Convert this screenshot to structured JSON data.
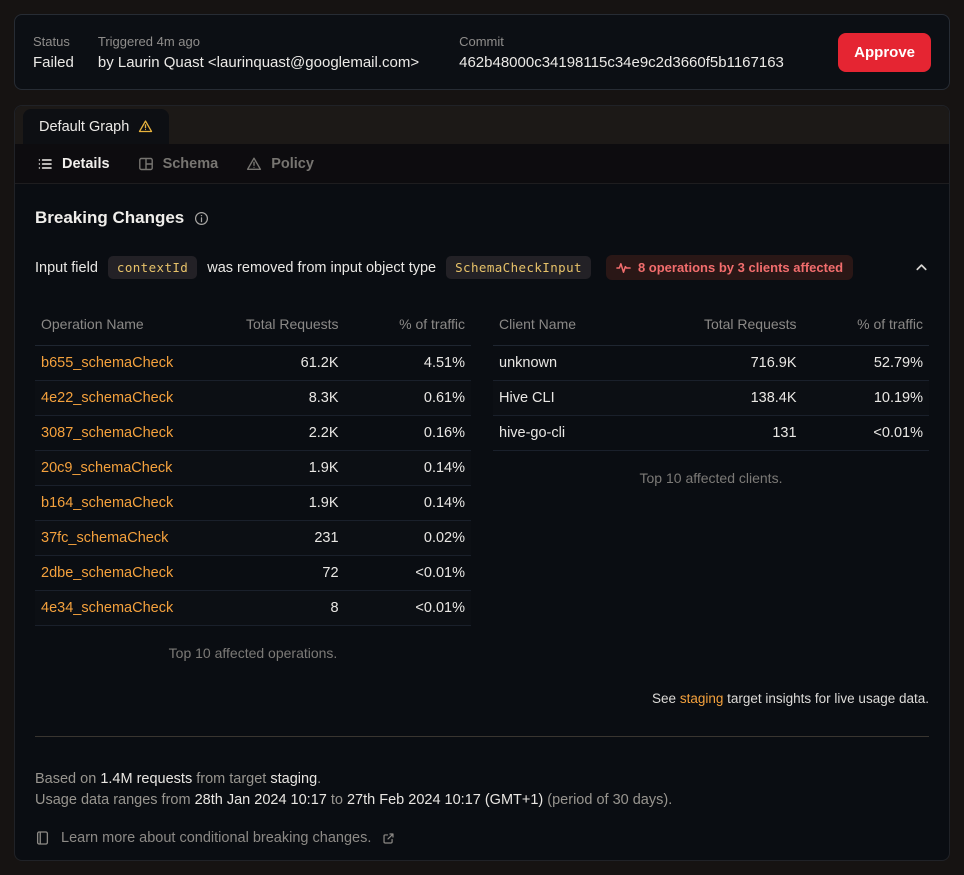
{
  "header": {
    "status_label": "Status",
    "status_value": "Failed",
    "triggered_label": "Triggered 4m ago",
    "triggered_value": "by Laurin Quast <laurinquast@googlemail.com>",
    "commit_label": "Commit",
    "commit_value": "462b48000c34198115c34e9c2d3660f5b1167163",
    "approve_label": "Approve"
  },
  "graph_tab": {
    "label": "Default Graph"
  },
  "tabs": {
    "details": "Details",
    "schema": "Schema",
    "policy": "Policy"
  },
  "breaking": {
    "title": "Breaking Changes",
    "change": {
      "prefix": "Input field",
      "field_code": "contextId",
      "middle": "was removed from input object type",
      "type_code": "SchemaCheckInput",
      "impact_badge": "8 operations by 3 clients affected"
    },
    "operations_table": {
      "headers": [
        "Operation Name",
        "Total Requests",
        "% of traffic"
      ],
      "rows": [
        {
          "name": "b655_schemaCheck",
          "requests": "61.2K",
          "traffic": "4.51%"
        },
        {
          "name": "4e22_schemaCheck",
          "requests": "8.3K",
          "traffic": "0.61%"
        },
        {
          "name": "3087_schemaCheck",
          "requests": "2.2K",
          "traffic": "0.16%"
        },
        {
          "name": "20c9_schemaCheck",
          "requests": "1.9K",
          "traffic": "0.14%"
        },
        {
          "name": "b164_schemaCheck",
          "requests": "1.9K",
          "traffic": "0.14%"
        },
        {
          "name": "37fc_schemaCheck",
          "requests": "231",
          "traffic": "0.02%"
        },
        {
          "name": "2dbe_schemaCheck",
          "requests": "72",
          "traffic": "<0.01%"
        },
        {
          "name": "4e34_schemaCheck",
          "requests": "8",
          "traffic": "<0.01%"
        }
      ],
      "caption": "Top 10 affected operations."
    },
    "clients_table": {
      "headers": [
        "Client Name",
        "Total Requests",
        "% of traffic"
      ],
      "rows": [
        {
          "name": "unknown",
          "requests": "716.9K",
          "traffic": "52.79%"
        },
        {
          "name": "Hive CLI",
          "requests": "138.4K",
          "traffic": "10.19%"
        },
        {
          "name": "hive-go-cli",
          "requests": "131",
          "traffic": "<0.01%"
        }
      ],
      "caption": "Top 10 affected clients."
    },
    "insights_note": {
      "prefix": "See ",
      "link": "staging",
      "suffix": " target insights for live usage data."
    }
  },
  "footer": {
    "based_prefix": "Based on ",
    "based_requests": "1.4M requests",
    "based_mid": " from target ",
    "based_target": "staging",
    "based_suffix": ".",
    "range_prefix": "Usage data ranges from ",
    "range_from": "28th Jan 2024 10:17",
    "range_to_word": " to ",
    "range_to": "27th Feb 2024 10:17 (GMT+1)",
    "range_suffix": " (period of 30 days).",
    "learn_more": "Learn more about conditional breaking changes."
  },
  "colors": {
    "accent_orange": "#f4a13d",
    "danger_red": "#e52532",
    "warning_yellow": "#e8b33d",
    "badge_red_text": "#f26d6d"
  }
}
